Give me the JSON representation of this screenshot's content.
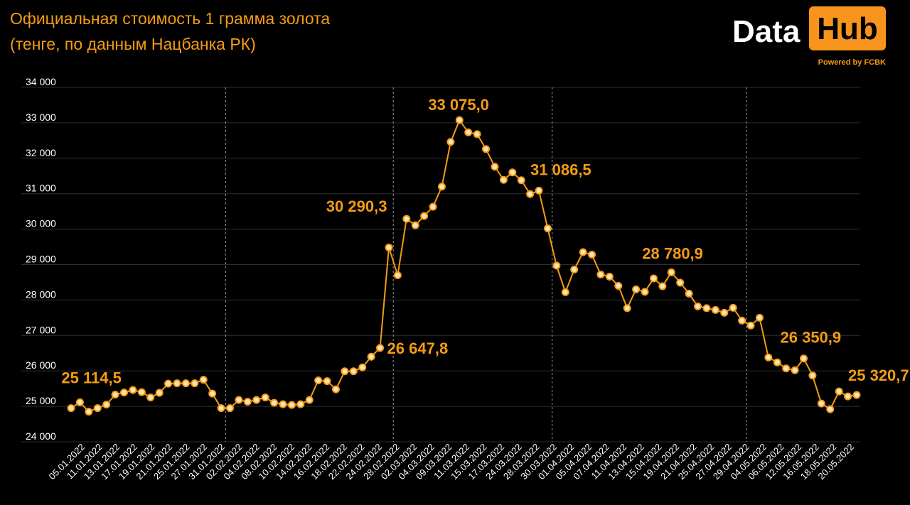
{
  "header": {
    "title_line1": "Официальная стоимость 1 грамма золота",
    "title_line2": "(тенге, по данным Нацбанка РК)"
  },
  "logo": {
    "word1": "Data",
    "word2": "Hub",
    "tagline": "Powered by FCBK"
  },
  "colors": {
    "background": "#000000",
    "accent": "#f39c12",
    "point_fill": "#fde3b5",
    "grid": "#2e2e2e",
    "axis_text": "#ffffff"
  },
  "chart_data": {
    "type": "line",
    "title": "Официальная стоимость 1 грамма золота",
    "subtitle": "(тенге, по данным Нацбанка РК)",
    "xlabel": "",
    "ylabel": "",
    "ylim": [
      24000,
      34000
    ],
    "y_ticks": [
      24000,
      25000,
      26000,
      27000,
      28000,
      29000,
      30000,
      31000,
      32000,
      33000,
      34000
    ],
    "y_tick_labels": [
      "24 000",
      "25 000",
      "26 000",
      "27 000",
      "28 000",
      "29 000",
      "30 000",
      "31 000",
      "32 000",
      "33 000",
      "34 000"
    ],
    "grid": true,
    "month_separators_after_index": [
      17,
      36,
      54,
      76
    ],
    "x_tick_labels": [
      "05.01.2022",
      "11.01.2022",
      "13.01.2022",
      "17.01.2022",
      "19.01.2022",
      "21.01.2022",
      "25.01.2022",
      "27.01.2022",
      "31.01.2022",
      "02.02.2022",
      "04.02.2022",
      "08.02.2022",
      "10.02.2022",
      "14.02.2022",
      "16.02.2022",
      "18.02.2022",
      "22.02.2022",
      "24.02.2022",
      "28.02.2022",
      "02.03.2022",
      "04.03.2022",
      "09.03.2022",
      "11.03.2022",
      "15.03.2022",
      "17.03.2022",
      "24.03.2022",
      "28.03.2022",
      "30.03.2022",
      "01.04.2022",
      "05.04.2022",
      "07.04.2022",
      "11.04.2022",
      "13.04.2022",
      "15.04.2022",
      "19.04.2022",
      "21.04.2022",
      "25.04.2022",
      "27.04.2022",
      "29.04.2022",
      "04.05.2022",
      "06.05.2022",
      "12.05.2022",
      "16.05.2022",
      "18.05.2022",
      "20.05.2022"
    ],
    "values": [
      24950,
      25114.5,
      24850,
      24950,
      25050,
      25330,
      25390,
      25460,
      25400,
      25250,
      25380,
      25640,
      25650,
      25650,
      25650,
      25750,
      25360,
      24950,
      24950,
      25180,
      25130,
      25180,
      25250,
      25100,
      25060,
      25040,
      25060,
      25180,
      25730,
      25710,
      25480,
      25990,
      25990,
      26100,
      26400,
      26647.8,
      29480,
      28700,
      30290.3,
      30110,
      30370,
      30630,
      31200,
      32460,
      33075.0,
      32730,
      32680,
      32260,
      31760,
      31390,
      31600,
      31380,
      30990,
      31086.5,
      30020,
      28970,
      28220,
      28860,
      29350,
      29280,
      28720,
      28660,
      28400,
      27770,
      28300,
      28230,
      28610,
      28390,
      28780.9,
      28490,
      28180,
      27820,
      27770,
      27720,
      27640,
      27780,
      27420,
      27280,
      27500,
      26380,
      26240,
      26070,
      26020,
      26350.9,
      25870,
      25080,
      24920,
      25420,
      25280,
      25320.7
    ],
    "data_labels": [
      {
        "index": 1,
        "text": "25 114,5"
      },
      {
        "index": 35,
        "text": "26 647,8"
      },
      {
        "index": 38,
        "text": "30 290,3"
      },
      {
        "index": 44,
        "text": "33 075,0"
      },
      {
        "index": 53,
        "text": "31 086,5"
      },
      {
        "index": 68,
        "text": "28 780,9"
      },
      {
        "index": 83,
        "text": "26 350,9"
      },
      {
        "index": 89,
        "text": "25 320,7"
      }
    ]
  }
}
